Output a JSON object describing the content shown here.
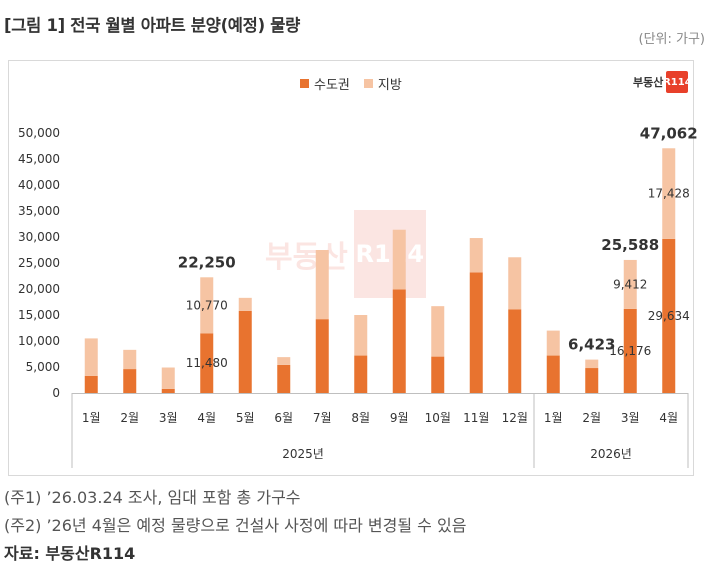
{
  "title": "[그림 1] 전국 월별 아파트 분양(예정) 물량",
  "unit": "(단위: 가구)",
  "logo_text": "부동산",
  "logo_badge": "R114",
  "watermark_text": "부동산",
  "watermark_badge": "R114",
  "notes": [
    "(주1) ’26.03.24 조사, 임대 포함 총 가구수",
    "(주2) ’26년 4월은 예정 물량으로 건설사 사정에 따라 변경될 수 있음"
  ],
  "source": "자료: 부동산R114",
  "colors": {
    "metro": "#e8732f",
    "regional": "#f6c4a3"
  },
  "chart_data": {
    "type": "bar",
    "stacked": true,
    "legend": [
      "수도권",
      "지방"
    ],
    "legend_position": "top",
    "y_ticks": [
      "0",
      "5,000",
      "10,000",
      "15,000",
      "20,000",
      "25,000",
      "30,000",
      "35,000",
      "40,000",
      "45,000",
      "50,000"
    ],
    "ylim": [
      0,
      50000
    ],
    "categories": [
      "1월",
      "2월",
      "3월",
      "4월",
      "5월",
      "6월",
      "7월",
      "8월",
      "9월",
      "10월",
      "11월",
      "12월",
      "1월",
      "2월",
      "3월",
      "4월"
    ],
    "year_groups": [
      {
        "label": "2025년",
        "count": 12
      },
      {
        "label": "2026년",
        "count": 4
      }
    ],
    "series": [
      {
        "name": "수도권",
        "values": [
          3300,
          4600,
          800,
          11480,
          15800,
          5400,
          14200,
          7200,
          19900,
          7000,
          23200,
          16100,
          7200,
          4800,
          16176,
          29634
        ]
      },
      {
        "name": "지방",
        "values": [
          7200,
          3700,
          4100,
          10770,
          2500,
          1500,
          13300,
          7800,
          11500,
          9700,
          6600,
          10000,
          4800,
          1623,
          9412,
          17428
        ]
      }
    ],
    "total_labels": [
      {
        "index": 3,
        "text": "22,250"
      },
      {
        "index": 13,
        "text": "6,423"
      },
      {
        "index": 14,
        "text": "25,588"
      },
      {
        "index": 15,
        "text": "47,062"
      }
    ],
    "segment_labels": [
      {
        "index": 3,
        "series": 0,
        "text": "11,480"
      },
      {
        "index": 3,
        "series": 1,
        "text": "10,770"
      },
      {
        "index": 14,
        "series": 0,
        "text": "16,176"
      },
      {
        "index": 14,
        "series": 1,
        "text": "9,412"
      },
      {
        "index": 15,
        "series": 0,
        "text": "29,634"
      },
      {
        "index": 15,
        "series": 1,
        "text": "17,428"
      }
    ]
  }
}
